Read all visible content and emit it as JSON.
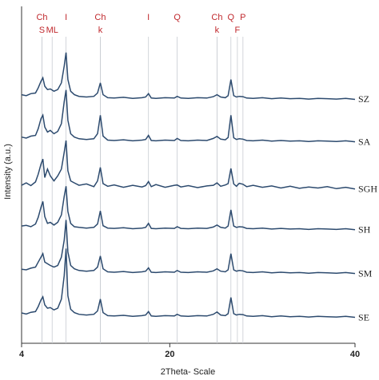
{
  "chart_data": {
    "type": "line",
    "x_label": "2Theta- Scale",
    "y_label": "Intensity (a.u.)",
    "xlim": [
      4,
      40
    ],
    "xticks": [
      4,
      20,
      40
    ],
    "ylim": [
      0,
      100
    ],
    "x": [
      4,
      4.5,
      5,
      5.5,
      5.8,
      6.1,
      6.3,
      6.5,
      6.8,
      7.1,
      7.5,
      7.9,
      8.3,
      8.6,
      8.8,
      9.0,
      9.3,
      9.7,
      10.2,
      11,
      11.8,
      12.2,
      12.5,
      12.8,
      13.3,
      14,
      15,
      16,
      17,
      17.4,
      17.7,
      18,
      18.5,
      19.5,
      20.5,
      20.8,
      21.2,
      22,
      23,
      24,
      24.7,
      25.1,
      25.5,
      26,
      26.3,
      26.6,
      26.9,
      27.2,
      27.5,
      27.9,
      28.3,
      29,
      30,
      31,
      32,
      33,
      34,
      35,
      36,
      37,
      38,
      39,
      40
    ],
    "series": [
      {
        "name": "SZ",
        "color": "#2c4a6e",
        "values": [
          73.8,
          73.5,
          74.1,
          74.3,
          75.8,
          77.8,
          78.8,
          76.3,
          75.3,
          75.5,
          74.8,
          75.3,
          77.3,
          82.3,
          86.3,
          78.3,
          74.8,
          73.8,
          73.3,
          73.1,
          73.3,
          74.3,
          77.3,
          73.8,
          72.9,
          72.8,
          73.0,
          72.7,
          72.9,
          73.1,
          74.1,
          72.8,
          72.7,
          72.9,
          72.8,
          73.3,
          72.8,
          72.7,
          72.9,
          72.8,
          73.2,
          73.8,
          73.1,
          72.9,
          73.5,
          78.3,
          73.5,
          73.1,
          73.3,
          73.2,
          72.8,
          72.7,
          72.9,
          72.6,
          72.8,
          72.6,
          72.7,
          72.5,
          72.7,
          72.6,
          72.5,
          72.7,
          72.4
        ]
      },
      {
        "name": "SA",
        "color": "#2c4a6e",
        "values": [
          61.2,
          60.9,
          61.5,
          61.7,
          63.7,
          66.7,
          67.7,
          64.2,
          62.7,
          63.2,
          62.2,
          62.9,
          65.2,
          71.7,
          75.2,
          66.2,
          62.2,
          61.2,
          60.7,
          60.5,
          60.7,
          62.2,
          67.7,
          61.5,
          60.3,
          60.2,
          60.4,
          60.1,
          60.3,
          60.5,
          61.7,
          60.2,
          60.1,
          60.3,
          60.2,
          60.8,
          60.2,
          60.1,
          60.3,
          60.2,
          60.8,
          61.4,
          60.6,
          60.4,
          61.1,
          67.7,
          61.0,
          60.5,
          60.7,
          60.6,
          60.2,
          60.1,
          60.3,
          60.0,
          60.2,
          60.0,
          60.1,
          59.9,
          60.1,
          60.0,
          59.9,
          60.1,
          59.8
        ]
      },
      {
        "name": "SGH",
        "color": "#2c4a6e",
        "values": [
          46.9,
          47.6,
          46.8,
          47.9,
          50.2,
          53.2,
          54.7,
          49.2,
          51.7,
          49.7,
          48.2,
          49.7,
          51.7,
          56.7,
          60.2,
          51.2,
          48.2,
          47.6,
          46.9,
          47.3,
          46.5,
          48.2,
          52.2,
          47.4,
          46.6,
          47.0,
          46.3,
          46.9,
          46.4,
          46.8,
          48.0,
          46.5,
          47.1,
          46.3,
          46.9,
          47.0,
          46.4,
          46.8,
          46.2,
          46.7,
          46.9,
          47.6,
          46.6,
          47.0,
          47.4,
          51.9,
          47.3,
          46.6,
          47.5,
          47.2,
          46.5,
          46.9,
          46.3,
          46.7,
          46.1,
          46.6,
          46.0,
          46.4,
          46.1,
          46.5,
          45.9,
          46.3,
          45.8
        ]
      },
      {
        "name": "SH",
        "color": "#2c4a6e",
        "values": [
          34.8,
          35.0,
          34.6,
          35.4,
          37.4,
          40.4,
          42.1,
          37.6,
          35.6,
          35.9,
          35.1,
          35.9,
          38.1,
          43.6,
          46.6,
          39.1,
          35.6,
          34.6,
          34.4,
          34.2,
          34.4,
          35.4,
          39.3,
          34.9,
          34.2,
          34.1,
          34.3,
          34.0,
          34.2,
          34.4,
          35.6,
          34.1,
          34.0,
          34.2,
          34.1,
          34.6,
          34.1,
          34.0,
          34.2,
          34.1,
          34.5,
          35.1,
          34.4,
          34.2,
          34.8,
          39.6,
          34.8,
          34.4,
          34.6,
          34.5,
          34.1,
          34.0,
          34.2,
          33.9,
          34.1,
          33.9,
          34.0,
          33.8,
          34.0,
          33.9,
          33.8,
          34.0,
          33.7
        ]
      },
      {
        "name": "SM",
        "color": "#2c4a6e",
        "values": [
          22.0,
          21.8,
          22.3,
          22.6,
          24.1,
          25.6,
          26.6,
          24.1,
          23.6,
          23.1,
          22.6,
          23.1,
          25.6,
          30.6,
          36.6,
          27.1,
          23.1,
          22.1,
          21.6,
          21.4,
          21.6,
          22.6,
          25.9,
          22.1,
          21.2,
          21.1,
          21.3,
          21.0,
          21.2,
          21.4,
          22.4,
          21.1,
          21.0,
          21.2,
          21.1,
          21.6,
          21.1,
          21.0,
          21.2,
          21.1,
          21.5,
          22.1,
          21.4,
          21.2,
          21.8,
          26.6,
          21.8,
          21.4,
          21.6,
          21.5,
          21.1,
          21.0,
          21.2,
          20.9,
          21.1,
          20.9,
          21.0,
          20.8,
          21.0,
          20.9,
          20.8,
          21.0,
          20.7
        ]
      },
      {
        "name": "SE",
        "color": "#2c4a6e",
        "values": [
          9.0,
          8.7,
          9.2,
          9.4,
          10.9,
          12.9,
          13.8,
          11.4,
          10.4,
          10.6,
          9.9,
          10.4,
          13.1,
          20.1,
          28.1,
          14.1,
          10.1,
          9.1,
          8.6,
          8.4,
          8.6,
          9.6,
          13.1,
          9.1,
          8.2,
          8.1,
          8.3,
          8.0,
          8.2,
          8.4,
          9.4,
          8.1,
          8.0,
          8.2,
          8.1,
          8.6,
          8.1,
          8.0,
          8.2,
          8.1,
          8.6,
          9.3,
          8.4,
          8.2,
          8.8,
          13.6,
          8.8,
          8.4,
          8.6,
          8.5,
          8.1,
          8.0,
          8.2,
          7.9,
          8.1,
          7.9,
          8.0,
          7.8,
          8.0,
          7.9,
          7.8,
          8.0,
          7.7
        ]
      }
    ],
    "peak_labels": {
      "top": [
        {
          "x": 6.2,
          "text": "Ch"
        },
        {
          "x": 8.8,
          "text": "I"
        },
        {
          "x": 12.5,
          "text": "Ch"
        },
        {
          "x": 17.7,
          "text": "I"
        },
        {
          "x": 20.8,
          "text": "Q"
        },
        {
          "x": 25.1,
          "text": "Ch"
        },
        {
          "x": 26.6,
          "text": "Q"
        },
        {
          "x": 27.9,
          "text": "P"
        }
      ],
      "bottom": [
        {
          "x": 6.2,
          "text": "S"
        },
        {
          "x": 7.3,
          "text": "ML"
        },
        {
          "x": 12.5,
          "text": "k"
        },
        {
          "x": 25.1,
          "text": "k"
        },
        {
          "x": 27.3,
          "text": "F"
        }
      ]
    },
    "peak_line_color": "#c8ccd2",
    "label_color": "#c0282d"
  }
}
